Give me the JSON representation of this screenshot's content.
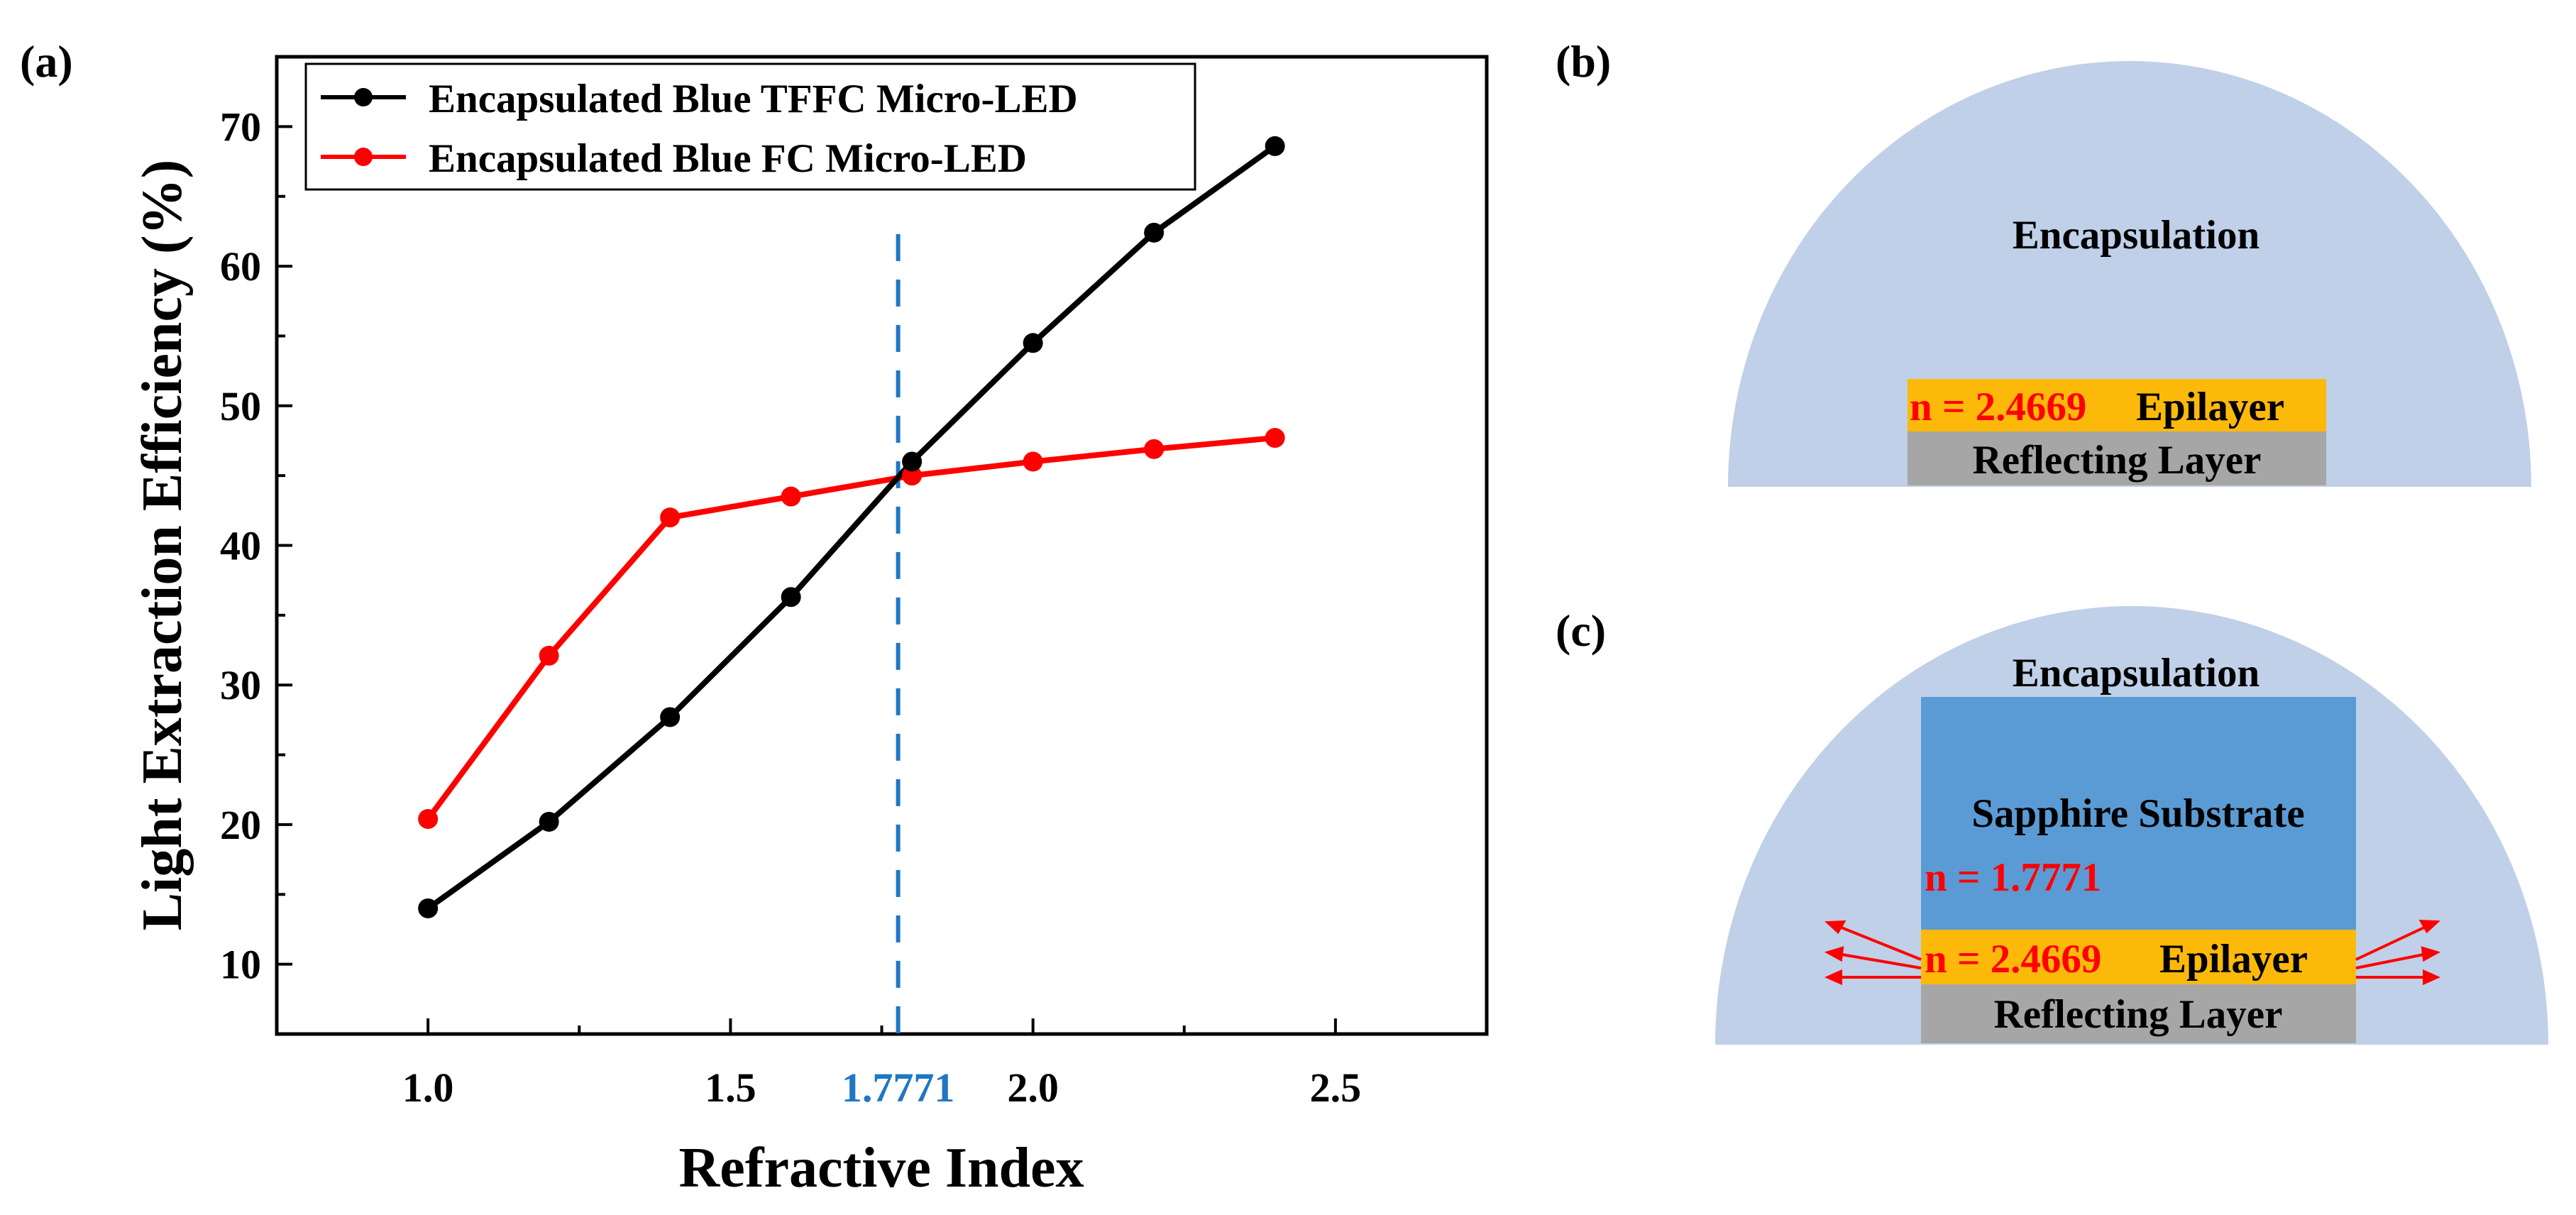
{
  "panels": {
    "a": {
      "label": "(a)"
    },
    "b": {
      "label": "(b)",
      "encapsulation_label": "Encapsulation",
      "epilayer_index": "n = 2.4669",
      "epilayer_label": "Epilayer",
      "reflecting_label": "Reflecting Layer"
    },
    "c": {
      "label": "(c)",
      "encapsulation_label": "Encapsulation",
      "substrate_label": "Sapphire Substrate",
      "substrate_index": "n = 1.7771",
      "epilayer_index": "n = 2.4669",
      "epilayer_label": "Epilayer",
      "reflecting_label": "Reflecting Layer"
    }
  },
  "colors": {
    "encapsulation": "#bfd0e8",
    "epilayer": "#fdb90a",
    "reflecting": "#a6a6a6",
    "substrate": "#5b9bd5",
    "index_text": "#ff0000",
    "marker_line": "#1f77c4",
    "arrow": "#ff0000"
  },
  "chart_data": {
    "type": "line",
    "xlabel": "Refractive Index",
    "ylabel": "Light Extraction Efficiency (%)",
    "xlim": [
      0.75,
      2.75
    ],
    "ylim": [
      5,
      75
    ],
    "xticks": [
      1.0,
      1.5,
      2.0,
      2.5
    ],
    "xtick_labels": [
      "1.0",
      "1.5",
      "2.0",
      "2.5"
    ],
    "yticks": [
      10,
      20,
      30,
      40,
      50,
      60,
      70
    ],
    "ytick_labels": [
      "10",
      "20",
      "30",
      "40",
      "50",
      "60",
      "70"
    ],
    "marker_line": {
      "x": 1.7771,
      "label": "1.7771",
      "y_top": 62.3
    },
    "legend_position": "top-left",
    "series": [
      {
        "name": "Encapsulated Blue TFFC Micro-LED",
        "color": "#000000",
        "x": [
          1.0,
          1.2,
          1.4,
          1.6,
          1.8,
          2.0,
          2.2,
          2.4
        ],
        "y": [
          14.0,
          20.2,
          27.7,
          36.3,
          46.0,
          54.5,
          62.4,
          68.6
        ]
      },
      {
        "name": "Encapsulated Blue FC Micro-LED",
        "color": "#ff0000",
        "x": [
          1.0,
          1.2,
          1.4,
          1.6,
          1.8,
          2.0,
          2.2,
          2.4
        ],
        "y": [
          20.4,
          32.1,
          42.0,
          43.5,
          45.0,
          46.0,
          46.9,
          47.7
        ]
      }
    ]
  }
}
